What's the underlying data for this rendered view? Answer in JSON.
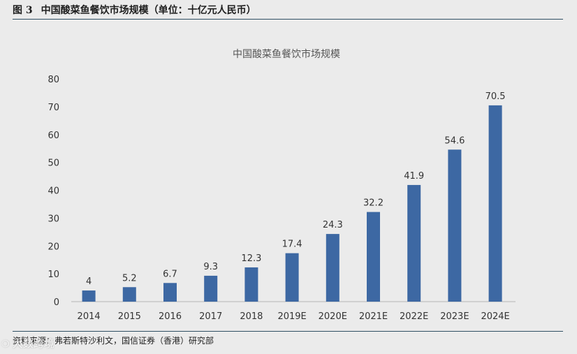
{
  "figure": {
    "number": "图 3",
    "caption": "中国酸菜鱼餐饮市场规模（单位：十亿元人民币）"
  },
  "source_note": "资料来源：弗若斯特沙利文，国信证券（香港）研究部",
  "watermark": {
    "icon": "logo-icon",
    "text": "大数跨境"
  },
  "colors": {
    "bar": "#3d68a3",
    "background": "#ebebeb",
    "rule": "#2f4f63"
  },
  "chart_data": {
    "type": "bar",
    "title": "中国酸菜鱼餐饮市场规模",
    "categories": [
      "2014",
      "2015",
      "2016",
      "2017",
      "2018",
      "2019E",
      "2020E",
      "2021E",
      "2022E",
      "2023E",
      "2024E"
    ],
    "values": [
      4,
      5.2,
      6.7,
      9.3,
      12.3,
      17.4,
      24.3,
      32.2,
      41.9,
      54.6,
      70.5
    ],
    "value_labels": [
      "4",
      "5.2",
      "6.7",
      "9.3",
      "12.3",
      "17.4",
      "24.3",
      "32.2",
      "41.9",
      "54.6",
      "70.5"
    ],
    "ylim": [
      0,
      80
    ],
    "yticks": [
      0,
      10,
      20,
      30,
      40,
      50,
      60,
      70,
      80
    ],
    "xlabel": "",
    "ylabel": "",
    "grid": false,
    "legend": "none"
  }
}
